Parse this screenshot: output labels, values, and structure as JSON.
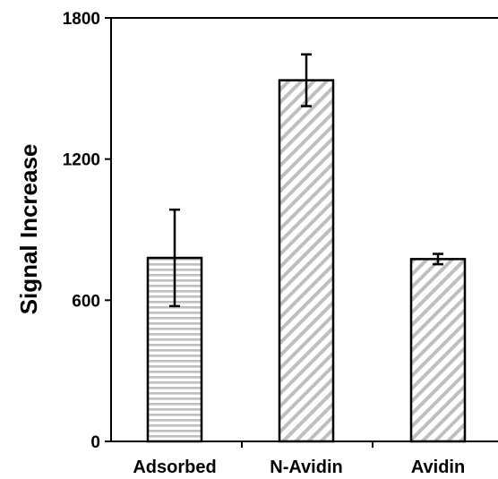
{
  "chart_data": {
    "type": "bar",
    "categories": [
      "Adsorbed",
      "N-Avidin",
      "Avidin"
    ],
    "values": [
      780,
      1535,
      775
    ],
    "error": [
      205,
      110,
      22
    ],
    "ylabel": "Signal Increase",
    "xlabel": "",
    "ylim": [
      0,
      1800
    ],
    "yticks": [
      0,
      600,
      1200,
      1800
    ],
    "grid": false,
    "legend": "none",
    "fill_patterns": [
      "horizontal-stripes",
      "diagonal-stripes",
      "diagonal-stripes"
    ],
    "colors": {
      "stripe": "#bfbfbf",
      "bar_background": "#ffffff",
      "outline": "#000000"
    }
  }
}
